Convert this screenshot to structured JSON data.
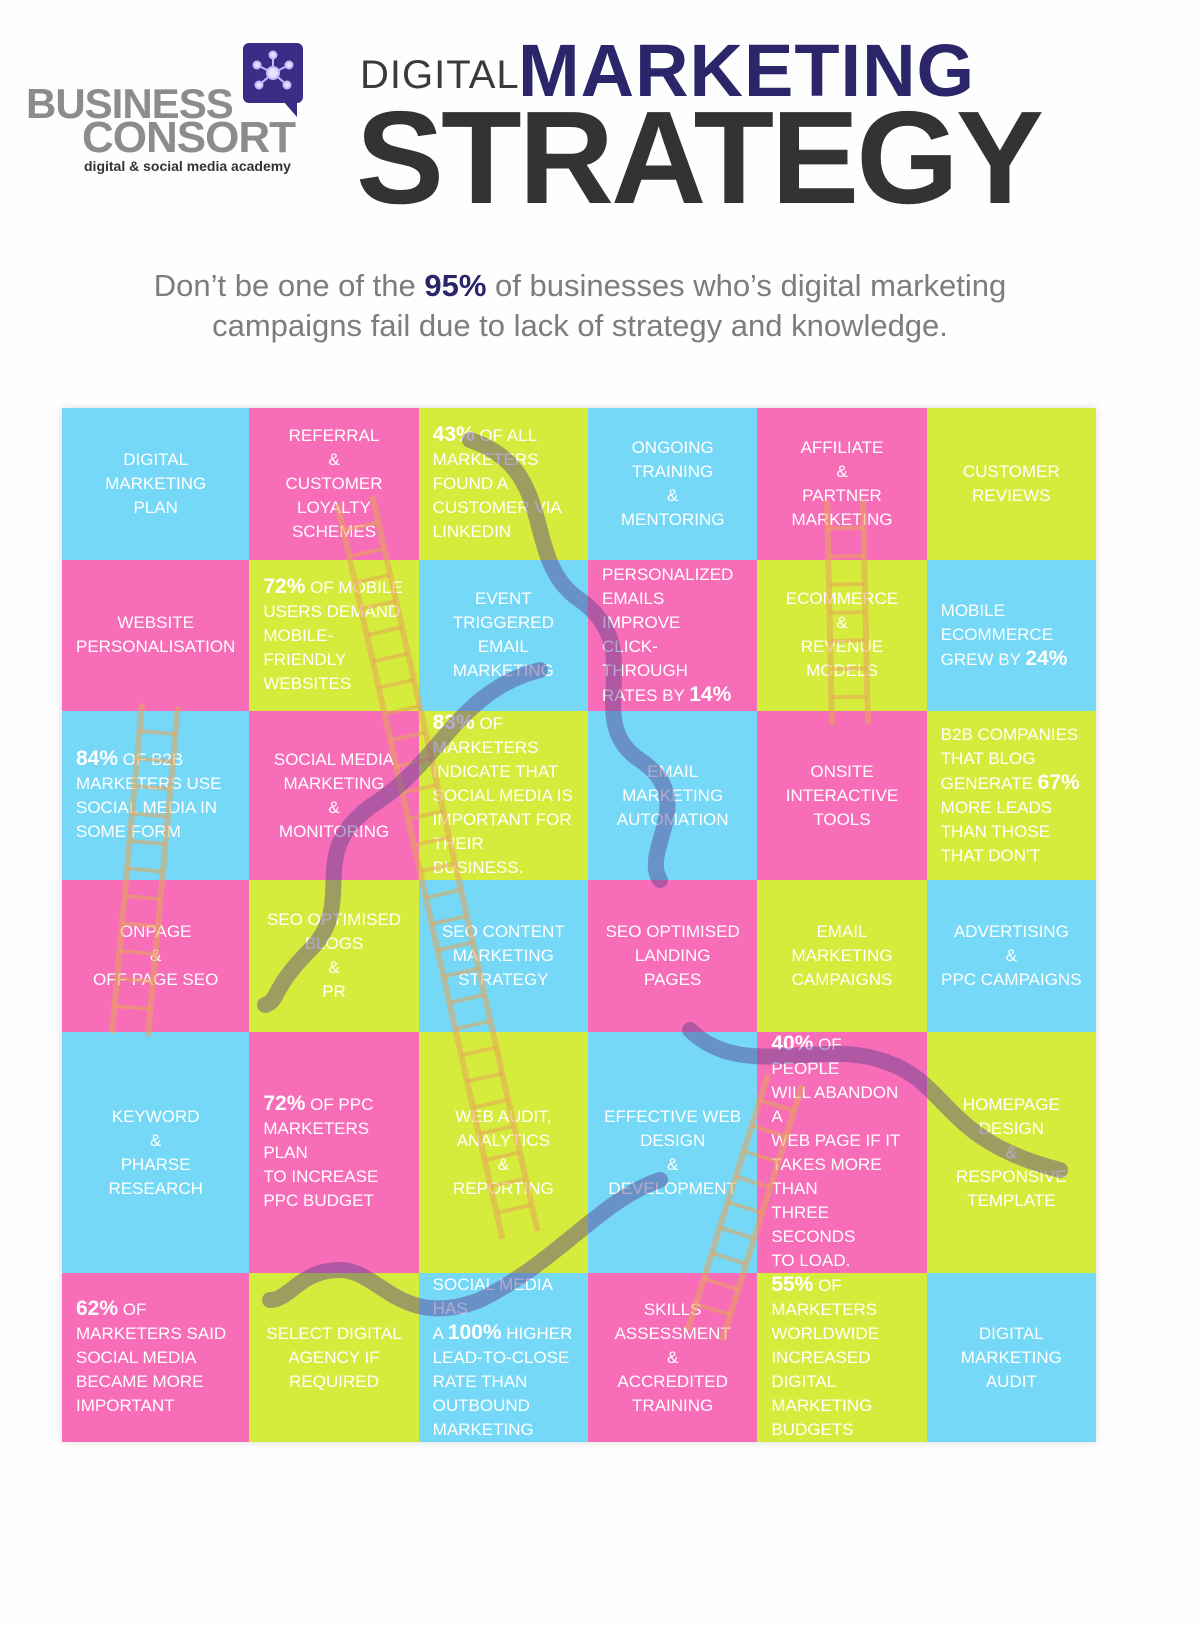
{
  "logo": {
    "name_line1": "BUSINESS",
    "name_line2": "CONSORT",
    "tagline": "digital & social media academy",
    "icon": "network-nodes-speech-bubble-icon"
  },
  "title": {
    "word1": "DIGITAL",
    "word2": "MARKETING",
    "word3": "STRATEGY"
  },
  "subtitle": {
    "pre": "Don’t be one of the ",
    "bold": "95%",
    "post": " of businesses who’s digital marketing",
    "line2": "campaigns fail due to lack of strategy and knowledge."
  },
  "colors": {
    "blue": "#74d8f6",
    "pink": "#f76db8",
    "lime": "#d6ec3c",
    "navy": "#2b2669"
  },
  "board": [
    {
      "color": "blue",
      "align": "c",
      "lines": [
        {
          "t": "DIGITAL"
        },
        {
          "t": "MARKETING"
        },
        {
          "t": "PLAN"
        }
      ]
    },
    {
      "color": "pink",
      "align": "c",
      "lines": [
        {
          "t": "REFERRAL"
        },
        {
          "t": "&"
        },
        {
          "t": "CUSTOMER"
        },
        {
          "t": "LOYALTY"
        },
        {
          "t": "SCHEMES"
        }
      ]
    },
    {
      "color": "lime",
      "align": "l",
      "lines": [
        {
          "b": "43%",
          "t": " OF ALL"
        },
        {
          "t": "MARKETERS"
        },
        {
          "t": "FOUND A"
        },
        {
          "t": "CUSTOMER VIA"
        },
        {
          "t": "LINKEDIN"
        }
      ]
    },
    {
      "color": "blue",
      "align": "c",
      "lines": [
        {
          "t": "ONGOING"
        },
        {
          "t": "TRAINING"
        },
        {
          "t": "&"
        },
        {
          "t": "MENTORING"
        }
      ]
    },
    {
      "color": "pink",
      "align": "c",
      "lines": [
        {
          "t": "AFFILIATE"
        },
        {
          "t": "&"
        },
        {
          "t": "PARTNER"
        },
        {
          "t": "MARKETING"
        }
      ]
    },
    {
      "color": "lime",
      "align": "c",
      "lines": [
        {
          "t": "CUSTOMER"
        },
        {
          "t": "REVIEWS"
        }
      ]
    },
    {
      "color": "pink",
      "align": "c",
      "lines": [
        {
          "t": "WEBSITE"
        },
        {
          "t": "PERSONALISATION"
        }
      ]
    },
    {
      "color": "lime",
      "align": "l",
      "lines": [
        {
          "b": "72%",
          "t": "  OF MOBILE"
        },
        {
          "t": "USERS DEMAND"
        },
        {
          "t": "MOBILE-FRIENDLY"
        },
        {
          "t": "WEBSITES"
        }
      ]
    },
    {
      "color": "blue",
      "align": "c",
      "lines": [
        {
          "t": "EVENT"
        },
        {
          "t": "TRIGGERED EMAIL"
        },
        {
          "t": "MARKETING"
        }
      ]
    },
    {
      "color": "pink",
      "align": "l",
      "lines": [
        {
          "t": "PERSONALIZED"
        },
        {
          "t": "EMAILS IMPROVE"
        },
        {
          "t": "CLICK-THROUGH"
        },
        {
          "t": "RATES BY ",
          "b2": "14%"
        }
      ]
    },
    {
      "color": "lime",
      "align": "c",
      "lines": [
        {
          "t": "ECOMMERCE"
        },
        {
          "t": "&"
        },
        {
          "t": "REVENUE"
        },
        {
          "t": "MODELS"
        }
      ]
    },
    {
      "color": "blue",
      "align": "l",
      "lines": [
        {
          "t": "MOBILE"
        },
        {
          "t": "ECOMMERCE"
        },
        {
          "t": "GREW BY ",
          "b2": "24%"
        }
      ]
    },
    {
      "color": "blue",
      "align": "l",
      "lines": [
        {
          "b": "84%",
          "t": " OF B2B"
        },
        {
          "t": "MARKETERS USE"
        },
        {
          "t": "SOCIAL MEDIA IN"
        },
        {
          "t": "SOME FORM"
        }
      ]
    },
    {
      "color": "pink",
      "align": "c",
      "lines": [
        {
          "t": "SOCIAL MEDIA"
        },
        {
          "t": "MARKETING"
        },
        {
          "t": "&"
        },
        {
          "t": "MONITORING"
        }
      ]
    },
    {
      "color": "lime",
      "align": "l",
      "lines": [
        {
          "b": "83%",
          "t": " OF"
        },
        {
          "t": "MARKETERS"
        },
        {
          "t": "INDICATE THAT"
        },
        {
          "t": "SOCIAL MEDIA IS"
        },
        {
          "t": "IMPORTANT FOR"
        },
        {
          "t": "THEIR BUSINESS."
        }
      ]
    },
    {
      "color": "blue",
      "align": "c",
      "lines": [
        {
          "t": "EMAIL"
        },
        {
          "t": "MARKETING"
        },
        {
          "t": "AUTOMATION"
        }
      ]
    },
    {
      "color": "pink",
      "align": "c",
      "lines": [
        {
          "t": "ONSITE"
        },
        {
          "t": "INTERACTIVE"
        },
        {
          "t": "TOOLS"
        }
      ]
    },
    {
      "color": "lime",
      "align": "l",
      "lines": [
        {
          "t": "B2B COMPANIES"
        },
        {
          "t": "THAT BLOG"
        },
        {
          "t": "GENERATE ",
          "b2": "67%"
        },
        {
          "t": "MORE LEADS"
        },
        {
          "t": "THAN THOSE"
        },
        {
          "t": "THAT DON’T"
        }
      ]
    },
    {
      "color": "pink",
      "align": "c",
      "lines": [
        {
          "t": "ONPAGE"
        },
        {
          "t": "&"
        },
        {
          "t": "OFF PAGE SEO"
        }
      ]
    },
    {
      "color": "lime",
      "align": "c",
      "lines": [
        {
          "t": "SEO OPTIMISED"
        },
        {
          "t": "BLOGS"
        },
        {
          "t": "&"
        },
        {
          "t": "PR"
        }
      ]
    },
    {
      "color": "blue",
      "align": "c",
      "lines": [
        {
          "t": "SEO CONTENT"
        },
        {
          "t": "MARKETING"
        },
        {
          "t": "STRATEGY"
        }
      ]
    },
    {
      "color": "pink",
      "align": "c",
      "lines": [
        {
          "t": "SEO OPTIMISED"
        },
        {
          "t": "LANDING"
        },
        {
          "t": "PAGES"
        }
      ]
    },
    {
      "color": "lime",
      "align": "c",
      "lines": [
        {
          "t": "EMAIL"
        },
        {
          "t": "MARKETING"
        },
        {
          "t": "CAMPAIGNS"
        }
      ]
    },
    {
      "color": "blue",
      "align": "c",
      "lines": [
        {
          "t": "ADVERTISING"
        },
        {
          "t": "&"
        },
        {
          "t": "PPC CAMPAIGNS"
        }
      ]
    },
    {
      "color": "blue",
      "align": "c",
      "lines": [
        {
          "t": "KEYWORD"
        },
        {
          "t": "&"
        },
        {
          "t": "PHARSE"
        },
        {
          "t": "RESEARCH"
        }
      ]
    },
    {
      "color": "pink",
      "align": "l",
      "lines": [
        {
          "b": "72%",
          "t": " OF PPC"
        },
        {
          "t": "MARKETERS PLAN"
        },
        {
          "t": "TO INCREASE"
        },
        {
          "t": "PPC BUDGET"
        }
      ]
    },
    {
      "color": "lime",
      "align": "c",
      "lines": [
        {
          "t": "WEB AUDIT,"
        },
        {
          "t": "ANALYTICS"
        },
        {
          "t": "&"
        },
        {
          "t": "REPORTING"
        }
      ]
    },
    {
      "color": "blue",
      "align": "c",
      "lines": [
        {
          "t": "EFFECTIVE WEB"
        },
        {
          "t": "DESIGN"
        },
        {
          "t": "&"
        },
        {
          "t": "DEVELOPMENT"
        }
      ]
    },
    {
      "color": "pink",
      "align": "l",
      "lines": [
        {
          "b": "40%",
          "t": " OF PEOPLE"
        },
        {
          "t": "WILL ABANDON A"
        },
        {
          "t": "WEB PAGE IF IT"
        },
        {
          "t": "TAKES MORE THAN"
        },
        {
          "t": "THREE SECONDS"
        },
        {
          "t": "TO LOAD."
        }
      ]
    },
    {
      "color": "lime",
      "align": "c",
      "lines": [
        {
          "t": "HOMEPAGE"
        },
        {
          "t": "DESIGN"
        },
        {
          "t": "&"
        },
        {
          "t": "RESPONSIVE"
        },
        {
          "t": "TEMPLATE"
        }
      ]
    },
    {
      "color": "pink",
      "align": "l",
      "lines": [
        {
          "b": "62%",
          "t": " OF"
        },
        {
          "t": "MARKETERS SAID"
        },
        {
          "t": "SOCIAL MEDIA"
        },
        {
          "t": "BECAME MORE"
        },
        {
          "t": "IMPORTANT"
        }
      ]
    },
    {
      "color": "lime",
      "align": "c",
      "lines": [
        {
          "t": "SELECT DIGITAL"
        },
        {
          "t": "AGENCY IF"
        },
        {
          "t": "REQUIRED"
        }
      ]
    },
    {
      "color": "blue",
      "align": "l",
      "lines": [
        {
          "t": "SOCIAL MEDIA HAS"
        },
        {
          "t": "A ",
          "b2": "100%",
          "t2": " HIGHER"
        },
        {
          "t": "LEAD-TO-CLOSE"
        },
        {
          "t": "RATE THAN"
        },
        {
          "t": "OUTBOUND"
        },
        {
          "t": "MARKETING"
        }
      ]
    },
    {
      "color": "pink",
      "align": "c",
      "lines": [
        {
          "t": "SKILLS"
        },
        {
          "t": "ASSESSMENT"
        },
        {
          "t": "&"
        },
        {
          "t": "ACCREDITED"
        },
        {
          "t": "TRAINING"
        }
      ]
    },
    {
      "color": "lime",
      "align": "l",
      "lines": [
        {
          "b": "55%",
          "t": " OF"
        },
        {
          "t": "MARKETERS"
        },
        {
          "t": "WORLDWIDE"
        },
        {
          "t": "INCREASED DIGITAL"
        },
        {
          "t": "MARKETING"
        },
        {
          "t": "BUDGETS"
        }
      ]
    },
    {
      "color": "blue",
      "align": "c",
      "lines": [
        {
          "t": "DIGITAL"
        },
        {
          "t": "MARKETING"
        },
        {
          "t": "AUDIT"
        }
      ]
    }
  ]
}
